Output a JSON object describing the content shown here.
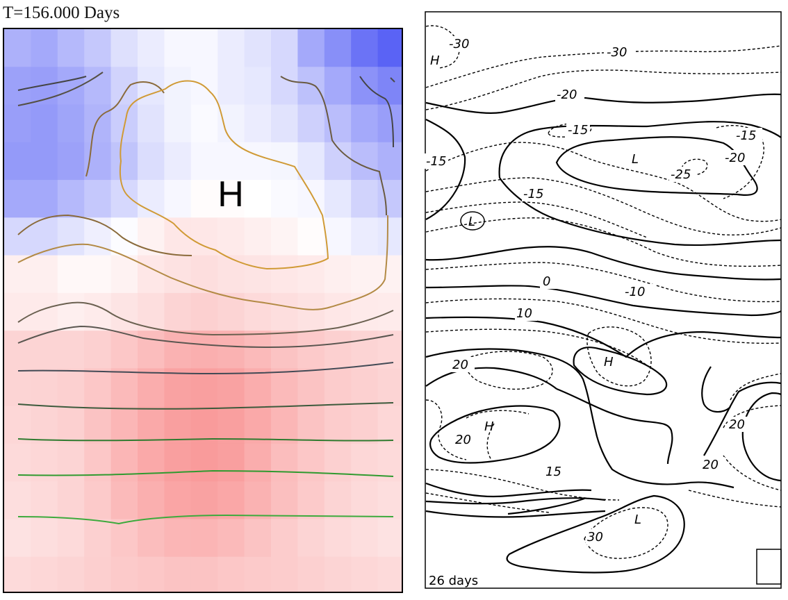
{
  "left": {
    "title": "T=156.000 Days",
    "high_label": "H",
    "colors": {
      "cold": "#5a63f5",
      "warm": "#f77a7a",
      "neutral": "#ffffff"
    },
    "grid_values": [
      [
        -0.5,
        -0.55,
        -0.45,
        -0.35,
        -0.2,
        -0.12,
        -0.05,
        -0.05,
        -0.12,
        -0.18,
        -0.25,
        -0.55,
        -0.72,
        -0.9,
        -1.0
      ],
      [
        -0.6,
        -0.62,
        -0.55,
        -0.45,
        -0.28,
        -0.15,
        -0.08,
        -0.05,
        -0.12,
        -0.15,
        -0.25,
        -0.4,
        -0.55,
        -0.7,
        -0.78
      ],
      [
        -0.62,
        -0.65,
        -0.58,
        -0.48,
        -0.32,
        -0.18,
        -0.08,
        -0.03,
        -0.08,
        -0.12,
        -0.18,
        -0.3,
        -0.42,
        -0.55,
        -0.62
      ],
      [
        -0.65,
        -0.65,
        -0.6,
        -0.5,
        -0.38,
        -0.22,
        -0.12,
        -0.05,
        -0.05,
        -0.05,
        -0.06,
        -0.15,
        -0.3,
        -0.42,
        -0.5
      ],
      [
        -0.55,
        -0.55,
        -0.45,
        -0.35,
        -0.25,
        -0.12,
        -0.05,
        0.02,
        0.02,
        0.0,
        -0.03,
        -0.05,
        -0.15,
        -0.28,
        -0.35
      ],
      [
        -0.25,
        -0.25,
        -0.18,
        -0.1,
        -0.02,
        0.1,
        0.18,
        0.18,
        0.16,
        0.12,
        0.08,
        0.02,
        -0.05,
        -0.12,
        -0.15
      ],
      [
        0.12,
        0.12,
        0.05,
        0.05,
        0.1,
        0.18,
        0.22,
        0.25,
        0.22,
        0.2,
        0.18,
        0.16,
        0.12,
        0.1,
        0.1
      ],
      [
        0.16,
        0.16,
        0.12,
        0.15,
        0.2,
        0.25,
        0.32,
        0.35,
        0.32,
        0.28,
        0.25,
        0.22,
        0.18,
        0.16,
        0.15
      ],
      [
        0.32,
        0.32,
        0.32,
        0.35,
        0.42,
        0.5,
        0.58,
        0.6,
        0.58,
        0.52,
        0.45,
        0.4,
        0.35,
        0.32,
        0.3
      ],
      [
        0.32,
        0.33,
        0.35,
        0.42,
        0.52,
        0.62,
        0.7,
        0.72,
        0.7,
        0.62,
        0.52,
        0.45,
        0.38,
        0.35,
        0.32
      ],
      [
        0.3,
        0.32,
        0.35,
        0.45,
        0.55,
        0.65,
        0.72,
        0.75,
        0.72,
        0.65,
        0.55,
        0.45,
        0.38,
        0.35,
        0.3
      ],
      [
        0.28,
        0.3,
        0.32,
        0.42,
        0.55,
        0.65,
        0.72,
        0.75,
        0.72,
        0.62,
        0.5,
        0.42,
        0.35,
        0.3,
        0.28
      ],
      [
        0.25,
        0.28,
        0.32,
        0.4,
        0.52,
        0.6,
        0.68,
        0.7,
        0.66,
        0.58,
        0.48,
        0.4,
        0.32,
        0.28,
        0.25
      ],
      [
        0.22,
        0.25,
        0.28,
        0.35,
        0.42,
        0.5,
        0.55,
        0.56,
        0.52,
        0.45,
        0.38,
        0.32,
        0.28,
        0.25,
        0.22
      ],
      [
        0.28,
        0.3,
        0.32,
        0.36,
        0.4,
        0.42,
        0.45,
        0.45,
        0.42,
        0.4,
        0.38,
        0.35,
        0.32,
        0.3,
        0.28
      ]
    ]
  },
  "right": {
    "footer": "26 days",
    "labels": [
      "H",
      "-30",
      "-30",
      "-20",
      "-15",
      "-15",
      "-15",
      "L",
      "-25",
      "-20",
      "-15",
      "L",
      "0",
      "-10",
      "10",
      "20",
      "H",
      "H",
      "20",
      "20",
      "15",
      "20",
      "L",
      "30"
    ]
  }
}
